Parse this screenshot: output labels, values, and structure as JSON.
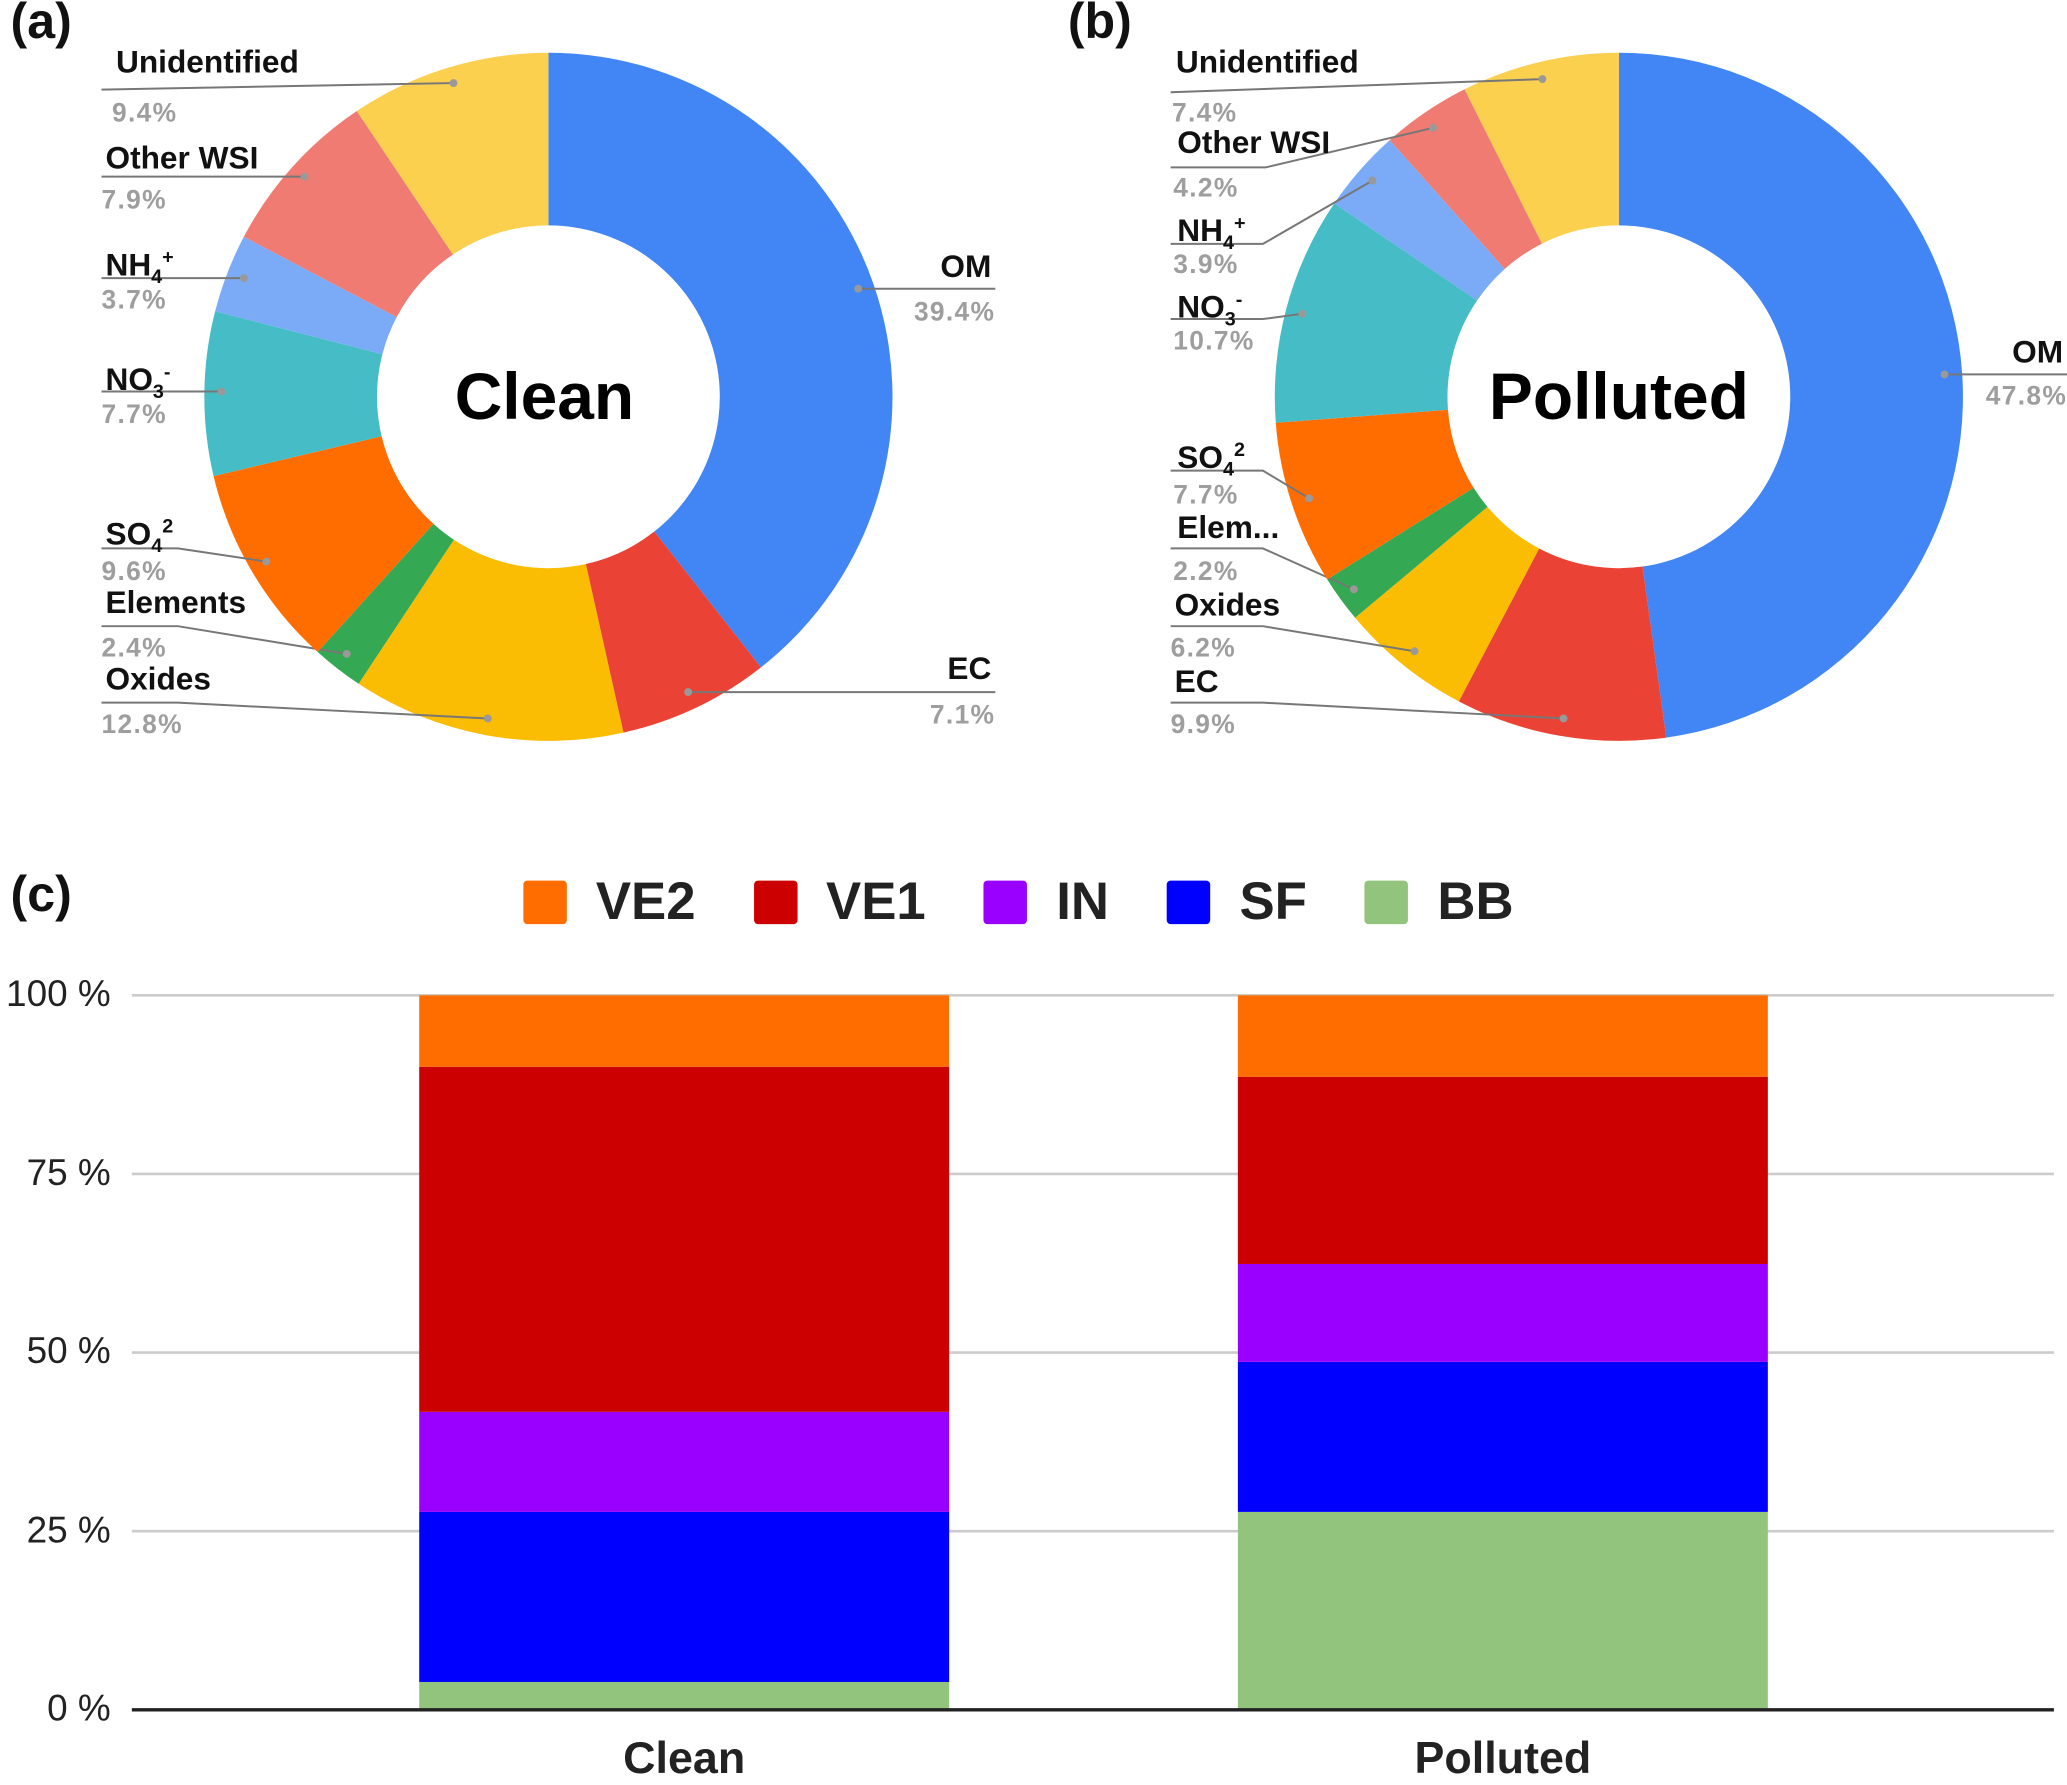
{
  "chart_data": [
    {
      "type": "pie",
      "panel": "(a)",
      "center_label": "Clean",
      "donut": true,
      "slices": [
        {
          "label": "OM",
          "sub": "",
          "sup": "",
          "value": 39.4,
          "pct_label": "39.4%",
          "color": "#4285F4"
        },
        {
          "label": "EC",
          "sub": "",
          "sup": "",
          "value": 7.1,
          "pct_label": "7.1%",
          "color": "#EA4335"
        },
        {
          "label": "Oxides",
          "sub": "",
          "sup": "",
          "value": 12.8,
          "pct_label": "12.8%",
          "color": "#FBBC04"
        },
        {
          "label": "Elements",
          "sub": "",
          "sup": "",
          "value": 2.4,
          "pct_label": "2.4%",
          "color": "#34A853"
        },
        {
          "label": "SO",
          "sub": "4",
          "sup": "2",
          "value": 9.6,
          "pct_label": "9.6%",
          "color": "#FF6D01"
        },
        {
          "label": "NO",
          "sub": "3",
          "sup": "-",
          "value": 7.7,
          "pct_label": "7.7%",
          "color": "#46BDC6"
        },
        {
          "label": "NH",
          "sub": "4",
          "sup": "+",
          "value": 3.7,
          "pct_label": "3.7%",
          "color": "#7BAAF7"
        },
        {
          "label": "Other WSI",
          "sub": "",
          "sup": "",
          "value": 7.9,
          "pct_label": "7.9%",
          "color": "#F07B72"
        },
        {
          "label": "Unidentified",
          "sub": "",
          "sup": "",
          "value": 9.4,
          "pct_label": "9.4%",
          "color": "#FCD04F"
        }
      ]
    },
    {
      "type": "pie",
      "panel": "(b)",
      "center_label": "Polluted",
      "donut": true,
      "slices": [
        {
          "label": "OM",
          "sub": "",
          "sup": "",
          "value": 47.8,
          "pct_label": "47.8%",
          "color": "#4285F4"
        },
        {
          "label": "EC",
          "sub": "",
          "sup": "",
          "value": 9.9,
          "pct_label": "9.9%",
          "color": "#EA4335"
        },
        {
          "label": "Oxides",
          "sub": "",
          "sup": "",
          "value": 6.2,
          "pct_label": "6.2%",
          "color": "#FBBC04"
        },
        {
          "label": "Elem...",
          "sub": "",
          "sup": "",
          "value": 2.2,
          "pct_label": "2.2%",
          "color": "#34A853"
        },
        {
          "label": "SO",
          "sub": "4",
          "sup": "2",
          "value": 7.7,
          "pct_label": "7.7%",
          "color": "#FF6D01"
        },
        {
          "label": "NO",
          "sub": "3",
          "sup": "-",
          "value": 10.7,
          "pct_label": "10.7%",
          "color": "#46BDC6"
        },
        {
          "label": "NH",
          "sub": "4",
          "sup": "+",
          "value": 3.9,
          "pct_label": "3.9%",
          "color": "#7BAAF7"
        },
        {
          "label": "Other WSI",
          "sub": "",
          "sup": "",
          "value": 4.2,
          "pct_label": "4.2%",
          "color": "#F07B72"
        },
        {
          "label": "Unidentified",
          "sub": "",
          "sup": "",
          "value": 7.4,
          "pct_label": "7.4%",
          "color": "#FCD04F"
        }
      ]
    },
    {
      "type": "bar",
      "stacked": "percent",
      "panel": "(c)",
      "categories": [
        "Clean",
        "Polluted"
      ],
      "series": [
        {
          "name": "BB",
          "color": "#93C47D",
          "values": [
            3.9,
            27.7
          ]
        },
        {
          "name": "SF",
          "color": "#0000FF",
          "values": [
            23.8,
            21.0
          ]
        },
        {
          "name": "IN",
          "color": "#9900FF",
          "values": [
            14.0,
            13.7
          ]
        },
        {
          "name": "VE1",
          "color": "#CC0000",
          "values": [
            48.3,
            26.2
          ]
        },
        {
          "name": "VE2",
          "color": "#FF6D01",
          "values": [
            10.0,
            11.4
          ]
        }
      ],
      "legend_order": [
        "VE2",
        "VE1",
        "IN",
        "SF",
        "BB"
      ],
      "legend_placement": "top",
      "yticks": [
        "0 %",
        "25 %",
        "50 %",
        "75 %",
        "100 %"
      ],
      "ylim": [
        0,
        100
      ],
      "grid": true,
      "xlabel": "",
      "ylabel": ""
    }
  ]
}
